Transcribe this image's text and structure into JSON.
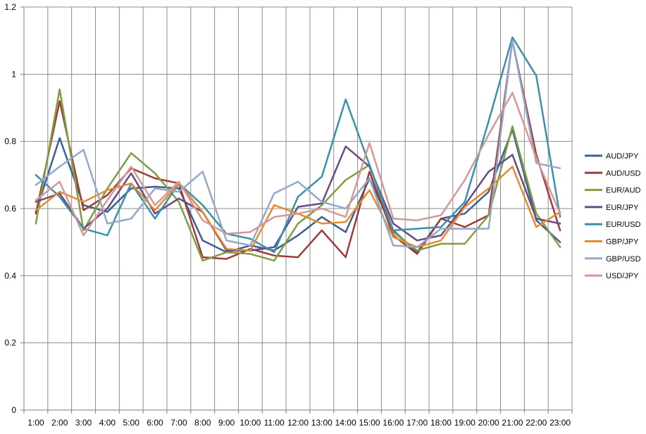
{
  "chart_data": {
    "type": "line",
    "title": "",
    "xlabel": "",
    "ylabel": "",
    "ylim": [
      0,
      1.2
    ],
    "yticks": [
      "0",
      "0.2",
      "0.4",
      "0.6",
      "0.8",
      "1",
      "1.2"
    ],
    "ytick_values": [
      0,
      0.2,
      0.4,
      0.6,
      0.8,
      1,
      1.2
    ],
    "grid": "vertical and horizontal gridlines",
    "legend": "right",
    "categories": [
      "1:00",
      "2:00",
      "3:00",
      "4:00",
      "5:00",
      "6:00",
      "7:00",
      "8:00",
      "9:00",
      "10:00",
      "11:00",
      "12:00",
      "13:00",
      "14:00",
      "15:00",
      "16:00",
      "17:00",
      "18:00",
      "19:00",
      "20:00",
      "21:00",
      "22:00",
      "23:00"
    ],
    "series": [
      {
        "name": "AUD/JPY",
        "color": "#3D5F96",
        "values": [
          0.59,
          0.81,
          0.61,
          0.59,
          0.66,
          0.665,
          0.66,
          0.505,
          0.47,
          0.49,
          0.475,
          0.52,
          0.575,
          0.53,
          0.69,
          0.535,
          0.47,
          0.57,
          0.585,
          0.65,
          0.835,
          0.565,
          0.5
        ]
      },
      {
        "name": "AUD/USD",
        "color": "#9E3C3A",
        "values": [
          0.585,
          0.92,
          0.595,
          0.64,
          0.72,
          0.69,
          0.675,
          0.455,
          0.45,
          0.48,
          0.46,
          0.455,
          0.535,
          0.455,
          0.71,
          0.52,
          0.465,
          0.57,
          0.545,
          0.58,
          1.1,
          0.76,
          0.535
        ]
      },
      {
        "name": "EUR/AUD",
        "color": "#809D42",
        "values": [
          0.555,
          0.955,
          0.535,
          0.66,
          0.765,
          0.705,
          0.62,
          0.445,
          0.47,
          0.465,
          0.445,
          0.555,
          0.61,
          0.685,
          0.73,
          0.53,
          0.475,
          0.495,
          0.495,
          0.58,
          0.845,
          0.585,
          0.485
        ]
      },
      {
        "name": "EUR/JPY",
        "color": "#684A86",
        "values": [
          0.62,
          0.645,
          0.54,
          0.6,
          0.705,
          0.585,
          0.63,
          0.59,
          0.475,
          0.475,
          0.485,
          0.605,
          0.615,
          0.785,
          0.725,
          0.555,
          0.505,
          0.52,
          0.61,
          0.71,
          0.76,
          0.57,
          0.555
        ]
      },
      {
        "name": "EUR/USD",
        "color": "#3A92A8",
        "values": [
          0.7,
          0.635,
          0.54,
          0.52,
          0.675,
          0.57,
          0.675,
          0.61,
          0.525,
          0.51,
          0.47,
          0.635,
          0.695,
          0.925,
          0.73,
          0.535,
          0.54,
          0.545,
          0.62,
          0.86,
          1.11,
          0.995,
          0.575
        ]
      },
      {
        "name": "GBP/JPY",
        "color": "#E68A30",
        "values": [
          0.595,
          0.65,
          0.62,
          0.655,
          0.675,
          0.595,
          0.675,
          0.59,
          0.48,
          0.475,
          0.61,
          0.585,
          0.555,
          0.56,
          0.655,
          0.515,
          0.485,
          0.505,
          0.605,
          0.66,
          0.725,
          0.545,
          0.59
        ]
      },
      {
        "name": "GBP/USD",
        "color": "#94A8CA",
        "values": [
          0.67,
          0.725,
          0.775,
          0.555,
          0.57,
          0.66,
          0.65,
          0.71,
          0.505,
          0.49,
          0.645,
          0.68,
          0.62,
          0.6,
          0.69,
          0.49,
          0.485,
          0.54,
          0.54,
          0.54,
          1.1,
          0.735,
          0.72
        ]
      },
      {
        "name": "USD/JPY",
        "color": "#D49896",
        "values": [
          0.625,
          0.68,
          0.52,
          0.625,
          0.725,
          0.61,
          0.68,
          0.565,
          0.525,
          0.53,
          0.575,
          0.585,
          0.6,
          0.575,
          0.795,
          0.57,
          0.565,
          0.58,
          0.685,
          0.82,
          0.945,
          0.75,
          0.585
        ]
      }
    ]
  }
}
